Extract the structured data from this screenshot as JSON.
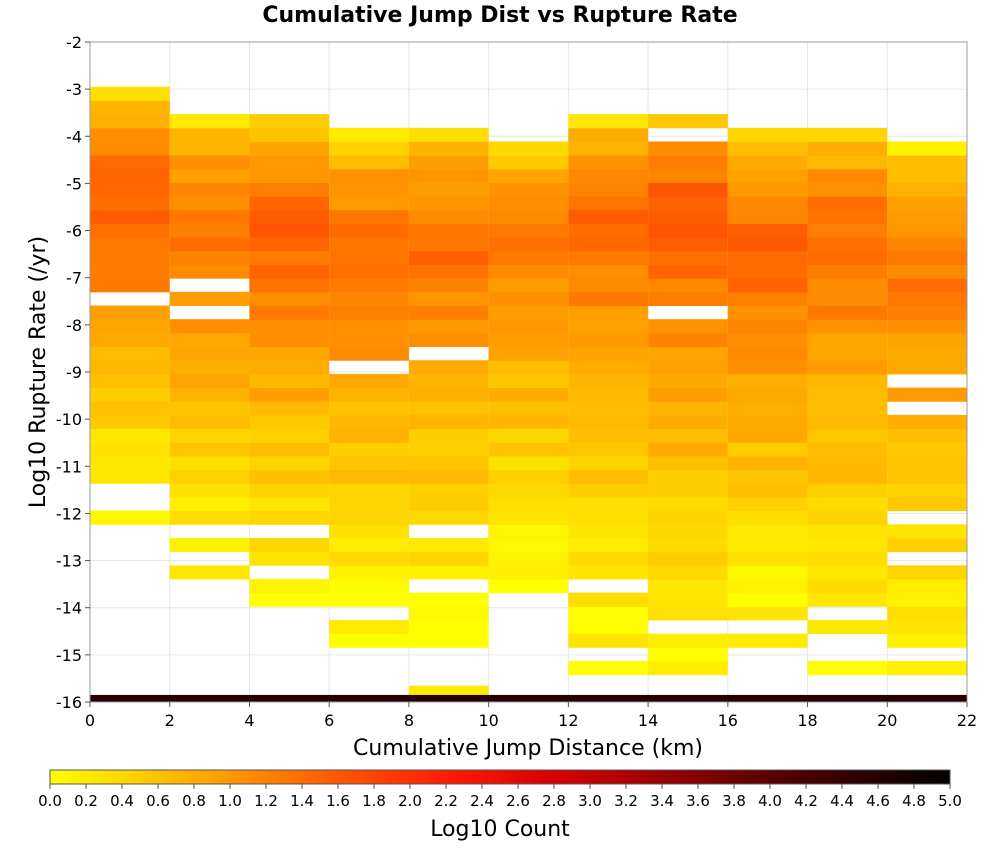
{
  "chart_data": {
    "type": "heatmap",
    "title": "Cumulative Jump Dist vs Rupture Rate",
    "xlabel": "Cumulative Jump Distance (km)",
    "ylabel": "Log10 Rupture Rate (/yr)",
    "xlim": [
      0,
      22
    ],
    "ylim": [
      -16,
      -2
    ],
    "x_ticks": [
      "0",
      "2",
      "4",
      "6",
      "8",
      "10",
      "12",
      "14",
      "16",
      "18",
      "20",
      "22"
    ],
    "y_ticks": [
      "-2",
      "-3",
      "-4",
      "-5",
      "-6",
      "-7",
      "-8",
      "-9",
      "-10",
      "-11",
      "-12",
      "-13",
      "-14",
      "-15",
      "-16"
    ],
    "x_bin_width": 2,
    "y_bin_height": 0.29,
    "y_bin_start": -16,
    "grid": true,
    "colorbar": {
      "label": "Log10 Count",
      "min": 0.0,
      "max": 5.0,
      "ticks": [
        "0.0",
        "0.2",
        "0.4",
        "0.6",
        "0.8",
        "1.0",
        "1.2",
        "1.4",
        "1.6",
        "1.8",
        "2.0",
        "2.2",
        "2.4",
        "2.6",
        "2.8",
        "3.0",
        "3.2",
        "3.4",
        "3.6",
        "3.8",
        "4.0",
        "4.2",
        "4.4",
        "4.6",
        "4.8",
        "5.0"
      ],
      "colors": [
        "#ffff00",
        "#ffc800",
        "#ff8c00",
        "#ff5000",
        "#ff1a00",
        "#d90000",
        "#a00000",
        "#640000",
        "#320000",
        "#000000"
      ]
    },
    "columns": [
      {
        "x_bin": "0-2",
        "top_rate": -3.0,
        "bottom_rate": -12.2,
        "peak_rate": -5.2,
        "peak_log_count": 1.6,
        "gaps": [
          -7.5,
          -11.4,
          -11.8
        ]
      },
      {
        "x_bin": "2-4",
        "top_rate": -3.6,
        "bottom_rate": -13.3,
        "peak_rate": -6.0,
        "peak_log_count": 1.4,
        "gaps": [
          -7.3,
          -7.8,
          -12.3,
          -12.9
        ]
      },
      {
        "x_bin": "4-6",
        "top_rate": -3.6,
        "bottom_rate": -14.1,
        "peak_rate": -6.0,
        "peak_log_count": 1.5,
        "gaps": [
          -12.3,
          -13.2
        ]
      },
      {
        "x_bin": "6-8",
        "top_rate": -3.9,
        "bottom_rate": -14.7,
        "peak_rate": -6.3,
        "peak_log_count": 1.4,
        "gaps": [
          -8.9,
          -14.0
        ]
      },
      {
        "x_bin": "8-10",
        "top_rate": -3.9,
        "bottom_rate": -14.7,
        "peak_rate": -6.3,
        "peak_log_count": 1.4,
        "gaps": [
          -8.6,
          -12.3,
          -13.6
        ]
      },
      {
        "x_bin": "10-12",
        "top_rate": -4.2,
        "bottom_rate": -13.6,
        "peak_rate": -6.3,
        "peak_log_count": 1.3,
        "gaps": []
      },
      {
        "x_bin": "12-14",
        "top_rate": -3.6,
        "bottom_rate": -15.5,
        "peak_rate": -5.7,
        "peak_log_count": 1.4,
        "gaps": [
          -13.6,
          -15.0
        ]
      },
      {
        "x_bin": "14-16",
        "top_rate": -3.6,
        "bottom_rate": -15.5,
        "peak_rate": -5.4,
        "peak_log_count": 1.6,
        "gaps": [
          -3.9,
          -7.7,
          -14.4
        ]
      },
      {
        "x_bin": "16-18",
        "top_rate": -3.9,
        "bottom_rate": -14.7,
        "peak_rate": -6.3,
        "peak_log_count": 1.5,
        "gaps": [
          -14.4
        ]
      },
      {
        "x_bin": "18-20",
        "top_rate": -3.9,
        "bottom_rate": -15.5,
        "peak_rate": -6.0,
        "peak_log_count": 1.4,
        "gaps": [
          -14.2,
          -14.7,
          -15.0
        ]
      },
      {
        "x_bin": "20-22",
        "top_rate": -4.2,
        "bottom_rate": -15.5,
        "peak_rate": -6.9,
        "peak_log_count": 1.3,
        "gaps": [
          -9.2,
          -9.8,
          -12.2,
          -12.9,
          -15.0
        ]
      }
    ],
    "extra_cells": [
      {
        "x_bin": "8-10",
        "rate": -15.8,
        "log_count": 0.2
      }
    ],
    "floor_row": {
      "rate": -16.0,
      "x_bins": "0-22",
      "log_count": 4.6
    }
  }
}
